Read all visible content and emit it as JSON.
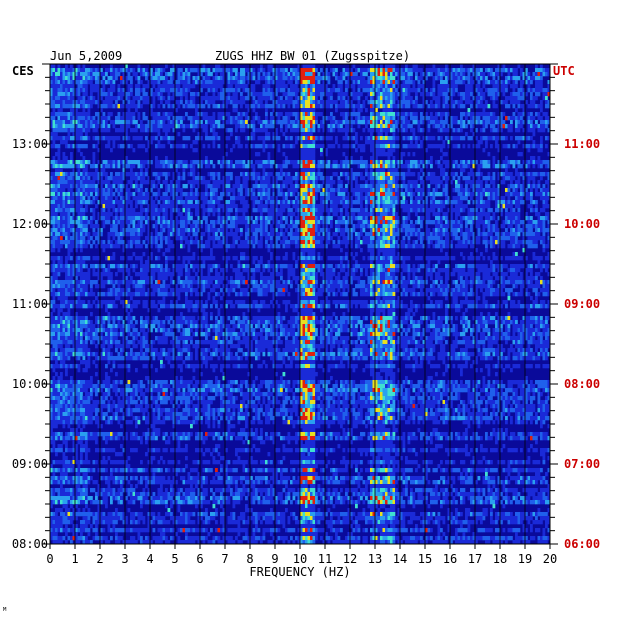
{
  "chart_data": {
    "type": "heatmap",
    "date": "Jun 5,2009",
    "title": "ZUGS HHZ BW 01 (Zugsspitze)",
    "xlabel": "FREQUENCY (HZ)",
    "xlim": [
      0,
      20
    ],
    "x_ticks": [
      "0",
      "1",
      "2",
      "3",
      "4",
      "5",
      "6",
      "7",
      "8",
      "9",
      "10",
      "11",
      "12",
      "13",
      "14",
      "15",
      "16",
      "17",
      "18",
      "19",
      "20"
    ],
    "left_axis_label": "CES",
    "right_axis_label": "UTC",
    "left_time_ticks": [
      "13:00",
      "12:00",
      "11:00",
      "10:00",
      "09:00",
      "08:00"
    ],
    "right_time_ticks": [
      "11:00",
      "10:00",
      "09:00",
      "08:00",
      "07:00",
      "06:00"
    ],
    "time_range_local": [
      "08:00",
      "14:00"
    ],
    "colors": {
      "background": "#0a0a9a",
      "low": "#1a2ad8",
      "mid": "#2aa0f0",
      "high": "#e8e020",
      "peak": "#e02010",
      "utc_text": "#cc0000"
    },
    "features": [
      {
        "name": "persistent band",
        "freq_hz": [
          10.0,
          10.6
        ]
      },
      {
        "name": "intermittent band",
        "freq_hz": [
          12.8,
          13.8
        ]
      }
    ],
    "corner_mark": "ᴹ"
  }
}
